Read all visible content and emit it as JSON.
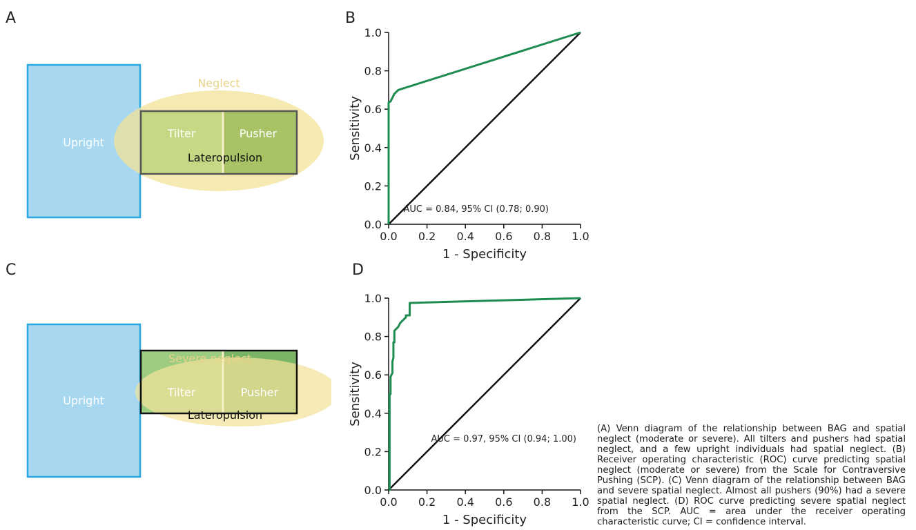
{
  "panels": {
    "a": "A",
    "b": "B",
    "c": "C",
    "d": "D"
  },
  "venn_a": {
    "upright": "Upright",
    "neglect": "Neglect",
    "tilter": "Tilter",
    "pusher": "Pusher",
    "lateropulsion": "Lateropulsion"
  },
  "venn_c": {
    "upright": "Upright",
    "neglect": "Severe neglect",
    "tilter": "Tilter",
    "pusher": "Pusher",
    "lateropulsion": "Lateropulsion"
  },
  "colors": {
    "upright_fill": "#a8d8ef",
    "upright_stroke": "#29a8e0",
    "neglect_fill": "#f3e39a",
    "neglect_label": "#ead28a",
    "tilter_fill": "#c5d884",
    "pusher_fill": "#a8c266",
    "severe_green": "#86bf73",
    "roc_curve": "#1e8c50",
    "diagonal": "#111111"
  },
  "chart_data": [
    {
      "type": "line",
      "xlabel": "1 - Specificity",
      "ylabel": "Sensitivity",
      "xlim": [
        0,
        1
      ],
      "ylim": [
        0,
        1
      ],
      "ticks": [
        "0.0",
        "0.2",
        "0.4",
        "0.6",
        "0.8",
        "1.0"
      ],
      "annotation": "AUC = 0.84, 95% CI (0.78; 0.90)",
      "series": [
        {
          "x": [
            0.0,
            0.0,
            0.0,
            0.01,
            0.02,
            0.03,
            0.05,
            1.0
          ],
          "y": [
            0.0,
            0.63,
            0.635,
            0.64,
            0.66,
            0.68,
            0.7,
            1.0
          ]
        },
        {
          "x": [
            0.0,
            1.0
          ],
          "y": [
            0.0,
            1.0
          ]
        }
      ]
    },
    {
      "type": "line",
      "xlabel": "1 - Specificity",
      "ylabel": "Sensitivity",
      "xlim": [
        0,
        1
      ],
      "ylim": [
        0,
        1
      ],
      "ticks": [
        "0.0",
        "0.2",
        "0.4",
        "0.6",
        "0.8",
        "1.0"
      ],
      "annotation": "AUC = 0.97, 95% CI (0.94; 1.00)",
      "series": [
        {
          "x": [
            0.0,
            0.005,
            0.005,
            0.01,
            0.01,
            0.02,
            0.02,
            0.025,
            0.025,
            0.03,
            0.03,
            0.04,
            0.05,
            0.06,
            0.07,
            0.08,
            0.09,
            0.09,
            0.11,
            0.11,
            1.0
          ],
          "y": [
            0.0,
            0.0,
            0.5,
            0.5,
            0.59,
            0.61,
            0.67,
            0.69,
            0.77,
            0.77,
            0.83,
            0.84,
            0.85,
            0.87,
            0.88,
            0.89,
            0.9,
            0.91,
            0.91,
            0.975,
            1.0
          ]
        },
        {
          "x": [
            0.0,
            1.0
          ],
          "y": [
            0.0,
            1.0
          ]
        }
      ]
    }
  ],
  "caption": "(A) Venn diagram of the relationship between BAG and spatial neglect (moderate or severe). All tilters and pushers had spatial neglect, and a few upright individuals had spatial neglect. (B) Receiver operating characteristic (ROC) curve predicting spatial neglect (moderate or severe) from the Scale for Contraversive Pushing (SCP). (C) Venn diagram of the relationship between BAG and severe spatial neglect. Almost all pushers (90%) had a severe spatial neglect. (D) ROC curve predicting severe spatial neglect from the SCP. AUC = area under the receiver operating characteristic curve; CI = confidence interval."
}
